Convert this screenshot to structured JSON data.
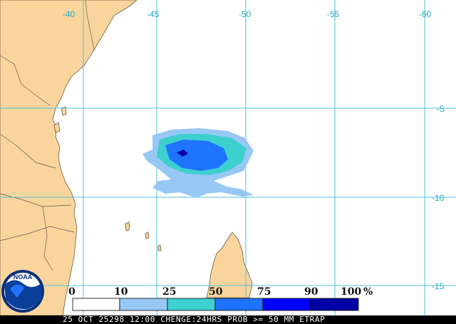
{
  "map": {
    "longitude_labels": [
      "-40",
      "-45",
      "-50",
      "-55",
      "-60"
    ],
    "latitude_labels": [
      "-5",
      "-10",
      "-15"
    ],
    "colors": {
      "land": "#f9d59d",
      "coast": "#6b5a4a",
      "grid": "#4dc3dd",
      "ocean": "#ffffff"
    }
  },
  "legend": {
    "levels": [
      "0",
      "10",
      "25",
      "50",
      "75",
      "90",
      "100"
    ],
    "unit": "%",
    "colors": [
      "#ffffff",
      "#97c8f5",
      "#3ecfcf",
      "#1f74ff",
      "#0000ff",
      "#0000a4"
    ]
  },
  "logo": {
    "text": "NOAA"
  },
  "footer": {
    "caption": "25 OCT 25298 12:00 CHENGE:24HRS PROB >= 50 MM ETRAP"
  }
}
